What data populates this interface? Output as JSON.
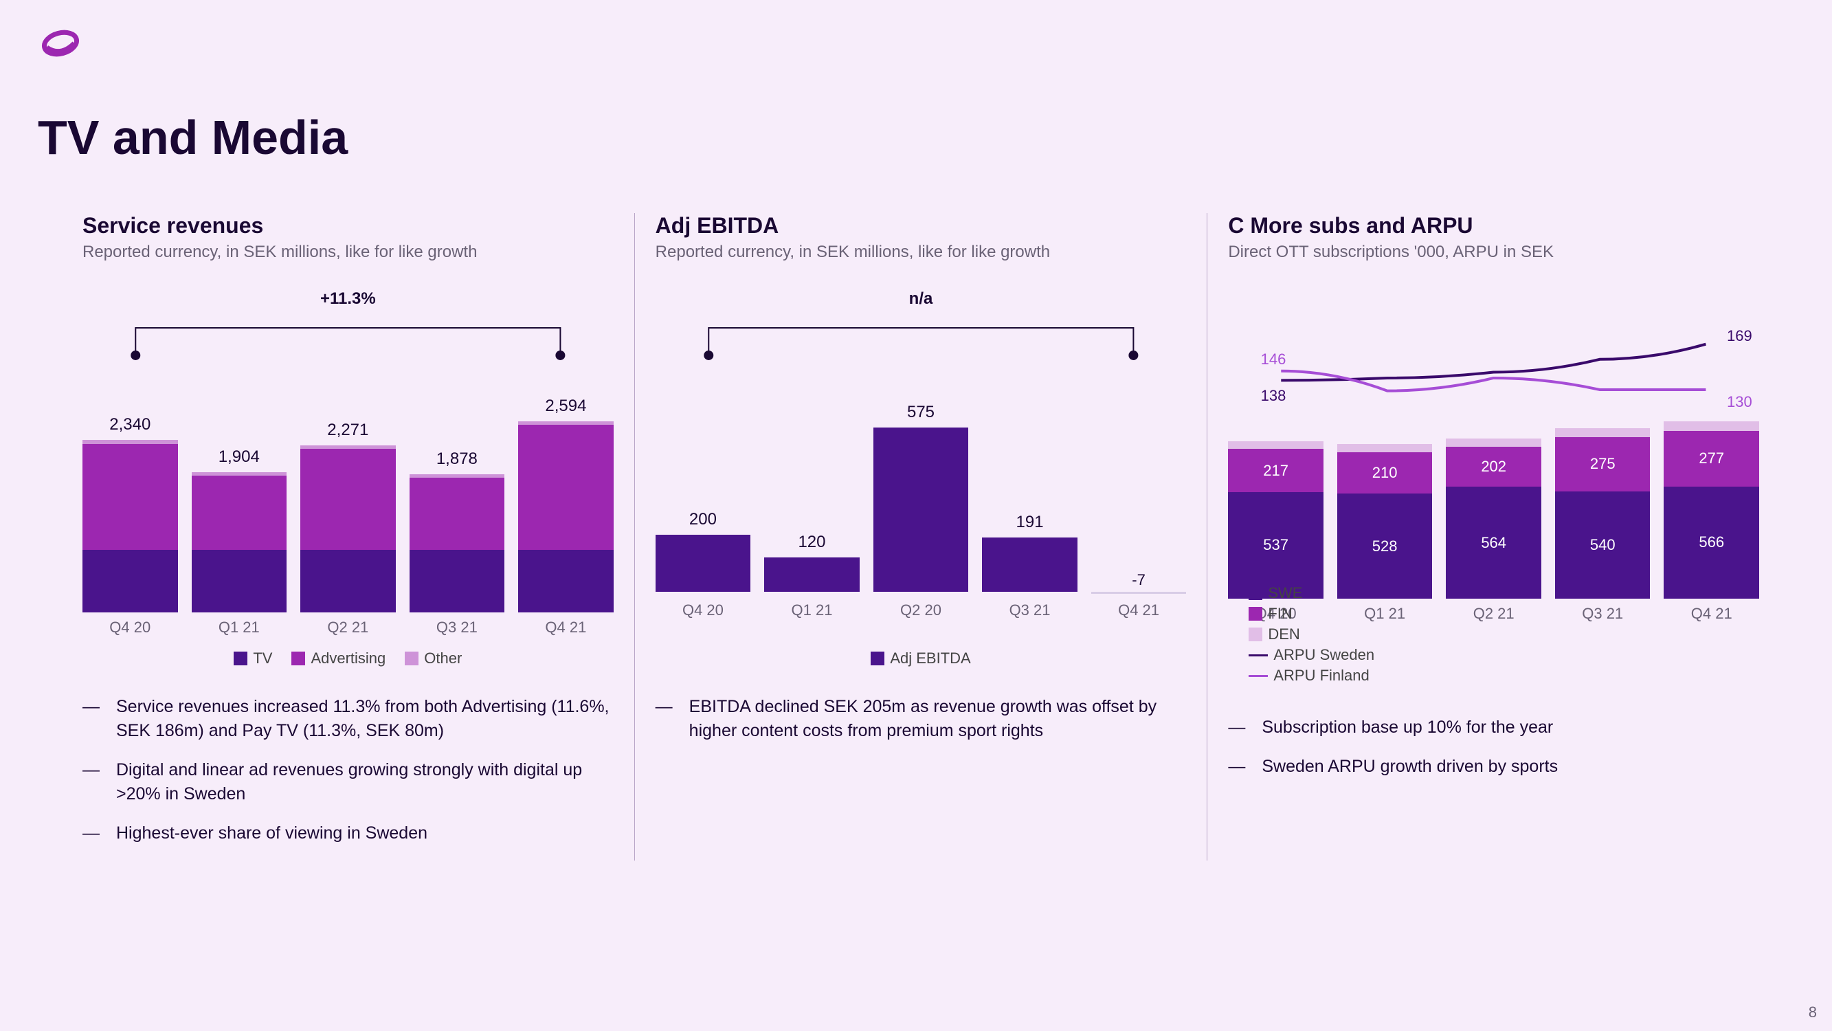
{
  "page_number": "8",
  "title": "TV and Media",
  "colors": {
    "dark_purple": "#4a148c",
    "mid_purple": "#9c27b0",
    "light_purple": "#ce93d8",
    "pale_purple": "#e1bee7",
    "line_swe": "#3a0a6b",
    "line_fin": "#a64dd6",
    "text_dark": "#1a0833",
    "text_grey": "#6a6276"
  },
  "panel1": {
    "title": "Service revenues",
    "subtitle": "Reported currency, in SEK millions, like for like growth",
    "bracket_label": "+11.3%",
    "categories": [
      "Q4 20",
      "Q1 21",
      "Q2 21",
      "Q3 21",
      "Q4 21"
    ],
    "totals": [
      "2,340",
      "1,904",
      "2,271",
      "1,878",
      "2,594"
    ],
    "ymax": 2800,
    "series": {
      "tv": [
        850,
        850,
        850,
        850,
        850
      ],
      "advertising": [
        1440,
        1004,
        1371,
        978,
        1694
      ],
      "other": [
        50,
        50,
        50,
        50,
        50
      ]
    },
    "series_colors": {
      "tv": "#4a148c",
      "advertising": "#9c27b0",
      "other": "#ce93d8"
    },
    "legend": [
      {
        "label": "TV",
        "color": "#4a148c"
      },
      {
        "label": "Advertising",
        "color": "#9c27b0"
      },
      {
        "label": "Other",
        "color": "#ce93d8"
      }
    ],
    "bullets": [
      "Service revenues increased 11.3% from both Advertising (11.6%, SEK 186m) and Pay TV (11.3%, SEK 80m)",
      "Digital and linear ad revenues growing strongly with digital up >20% in Sweden",
      "Highest-ever share of viewing in Sweden"
    ]
  },
  "panel2": {
    "title": "Adj EBITDA",
    "subtitle": "Reported currency, in SEK millions, like for like growth",
    "bracket_label": "n/a",
    "categories": [
      "Q4 20",
      "Q1 21",
      "Q2 20",
      "Q3 21",
      "Q4 21"
    ],
    "values": [
      200,
      120,
      575,
      191,
      -7
    ],
    "labels": [
      "200",
      "120",
      "575",
      "191",
      "-7"
    ],
    "ymax": 650,
    "bar_color": "#4a148c",
    "neg_color": "#d8cce6",
    "legend": [
      {
        "label": "Adj EBITDA",
        "color": "#4a148c"
      }
    ],
    "bullets": [
      "EBITDA declined SEK 205m as revenue growth was offset by higher content costs from premium sport rights"
    ]
  },
  "panel3": {
    "title": "C More subs and ARPU",
    "subtitle": "Direct OTT subscriptions '000, ARPU in SEK",
    "categories": [
      "Q4 20",
      "Q1 21",
      "Q2 21",
      "Q3 21",
      "Q4 21"
    ],
    "ymax": 900,
    "series": {
      "swe": [
        537,
        528,
        564,
        540,
        566
      ],
      "fin": [
        217,
        210,
        202,
        275,
        277
      ],
      "den": [
        40,
        40,
        40,
        45,
        50
      ]
    },
    "series_colors": {
      "swe": "#4a148c",
      "fin": "#9c27b0",
      "den": "#e1bee7"
    },
    "bar_value_labels": {
      "swe": [
        "537",
        "528",
        "564",
        "540",
        "566"
      ],
      "fin": [
        "217",
        "210",
        "202",
        "275",
        "277"
      ]
    },
    "lines": {
      "arpu_sweden": {
        "values": [
          138,
          140,
          145,
          156,
          169
        ],
        "color": "#3a0a6b",
        "start_label": "138",
        "end_label": "169"
      },
      "arpu_finland": {
        "values": [
          146,
          129,
          140,
          130,
          130
        ],
        "color": "#a64dd6",
        "start_label": "146",
        "end_label": "130"
      }
    },
    "line_ymax": 200,
    "legend": [
      {
        "label": "SWE",
        "type": "sw",
        "color": "#4a148c"
      },
      {
        "label": "FIN",
        "type": "sw",
        "color": "#9c27b0"
      },
      {
        "label": "DEN",
        "type": "sw",
        "color": "#e1bee7"
      },
      {
        "label": "ARPU Sweden",
        "type": "ln",
        "color": "#3a0a6b"
      },
      {
        "label": "ARPU Finland",
        "type": "ln",
        "color": "#a64dd6"
      }
    ],
    "bullets": [
      "Subscription base up 10% for the year",
      "Sweden ARPU growth driven by sports"
    ]
  }
}
